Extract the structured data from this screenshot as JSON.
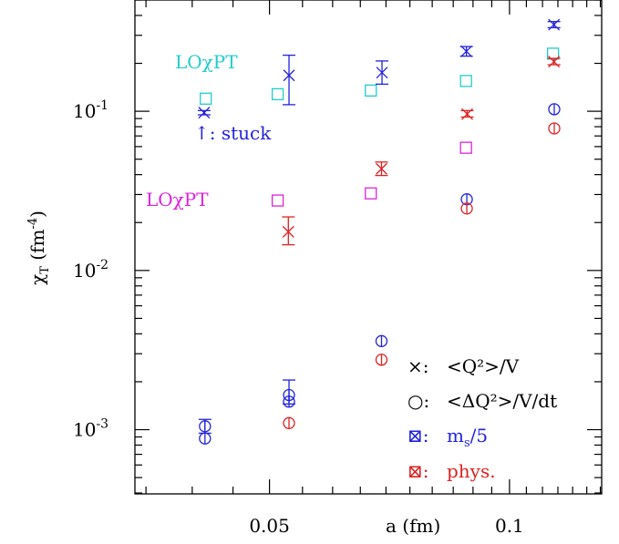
{
  "chart_data": {
    "type": "scatter",
    "xlabel": "a (fm)",
    "ylabel": "χ_T (fm^-4)",
    "xscale": "log",
    "yscale": "log",
    "xlim": [
      0.0339,
      0.1305
    ],
    "ylim": [
      0.000395,
      0.5
    ],
    "grid": false,
    "x_ticks": [
      {
        "value": 0.05,
        "label": "0.05"
      },
      {
        "value": 0.1,
        "label": "0.1"
      }
    ],
    "y_ticks": [
      {
        "value": 0.001,
        "base": "10",
        "exp": "-3"
      },
      {
        "value": 0.01,
        "base": "10",
        "exp": "-2"
      },
      {
        "value": 0.1,
        "base": "10",
        "exp": "-1"
      }
    ],
    "colors": {
      "ms5": "#2222dd",
      "phys": "#dd2222",
      "lo_ms5": "#22cccc",
      "lo_phys": "#dd22dd"
    },
    "series": [
      {
        "name": "LOχPT",
        "marker": "square",
        "color": "#22cccc",
        "points": [
          {
            "x": 0.0416,
            "y": 0.12
          },
          {
            "x": 0.0512,
            "y": 0.128
          },
          {
            "x": 0.067,
            "y": 0.135
          },
          {
            "x": 0.0882,
            "y": 0.155
          },
          {
            "x": 0.1134,
            "y": 0.23
          }
        ]
      },
      {
        "name": "LOχPT",
        "marker": "square",
        "color": "#dd22dd",
        "points": [
          {
            "x": 0.0512,
            "y": 0.0275
          },
          {
            "x": 0.067,
            "y": 0.0305
          },
          {
            "x": 0.0882,
            "y": 0.059
          }
        ]
      },
      {
        "marker": "cross",
        "color": "#2222dd",
        "points": [
          {
            "x": 0.0414,
            "y": 0.098,
            "lo": 0.095,
            "hi": 0.101
          },
          {
            "x": 0.0529,
            "y": 0.168,
            "lo": 0.11,
            "hi": 0.225
          },
          {
            "x": 0.0692,
            "y": 0.175,
            "lo": 0.148,
            "hi": 0.207
          },
          {
            "x": 0.0883,
            "y": 0.238,
            "lo": 0.222,
            "hi": 0.255
          },
          {
            "x": 0.1137,
            "y": 0.35,
            "lo": 0.335,
            "hi": 0.366
          }
        ]
      },
      {
        "marker": "cross",
        "color": "#dd2222",
        "points": [
          {
            "x": 0.0528,
            "y": 0.0175,
            "lo": 0.0145,
            "hi": 0.0217
          },
          {
            "x": 0.0691,
            "y": 0.0435,
            "lo": 0.0395,
            "hi": 0.048
          },
          {
            "x": 0.0885,
            "y": 0.096,
            "lo": 0.092,
            "hi": 0.101
          },
          {
            "x": 0.1137,
            "y": 0.205,
            "lo": 0.196,
            "hi": 0.215
          }
        ]
      },
      {
        "marker": "circle",
        "color": "#2222dd",
        "points": [
          {
            "x": 0.0415,
            "y": 0.00105,
            "lo": 0.00095,
            "hi": 0.00116
          },
          {
            "x": 0.0415,
            "y": 0.00088
          },
          {
            "x": 0.0529,
            "y": 0.00165,
            "lo": 0.00145,
            "hi": 0.00205
          },
          {
            "x": 0.0529,
            "y": 0.0015
          },
          {
            "x": 0.0691,
            "y": 0.0036
          },
          {
            "x": 0.0884,
            "y": 0.028
          },
          {
            "x": 0.1138,
            "y": 0.103
          }
        ]
      },
      {
        "marker": "circle",
        "color": "#dd2222",
        "points": [
          {
            "x": 0.0529,
            "y": 0.0011
          },
          {
            "x": 0.0691,
            "y": 0.00275
          },
          {
            "x": 0.0884,
            "y": 0.0245
          },
          {
            "x": 0.1138,
            "y": 0.078
          }
        ]
      }
    ],
    "annotations": {
      "lo_ms5": "LOχPT",
      "lo_phys": "LOχPT",
      "stuck": "↑: stuck"
    },
    "legend": {
      "placement": "bottom-right",
      "entries": [
        {
          "symbol": "×:",
          "text": "<Q²>/V",
          "color": "#000000"
        },
        {
          "symbol": "○:",
          "text": "<ΔQ²>/V/dt",
          "color": "#000000"
        },
        {
          "symbol": "⊠:",
          "text": "m_s/5",
          "color": "#2222dd"
        },
        {
          "symbol": "⊠:",
          "text": "phys.",
          "color": "#dd2222"
        }
      ]
    }
  }
}
